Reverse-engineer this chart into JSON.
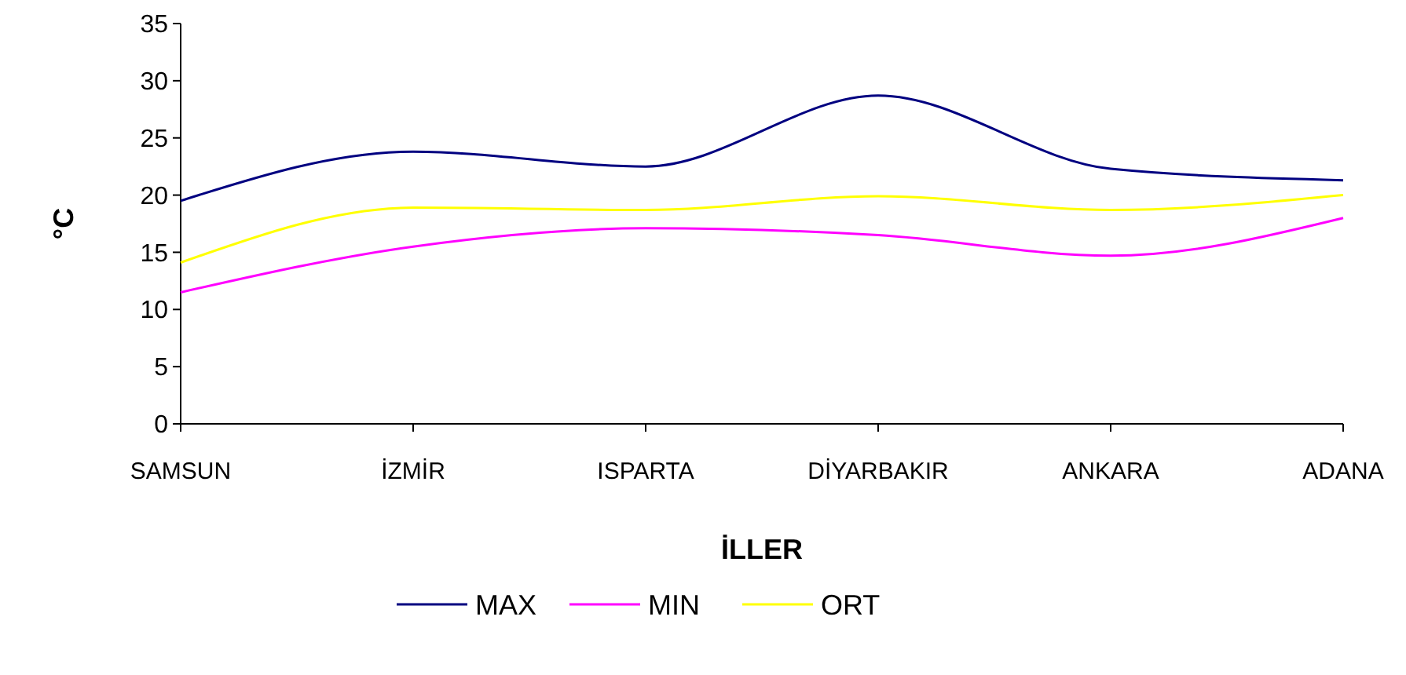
{
  "chart_data": {
    "type": "line",
    "xlabel": "İLLER",
    "ylabel": "°C",
    "categories": [
      "SAMSUN",
      "İZMİR",
      "ISPARTA",
      "DİYARBAKIR",
      "ANKARA",
      "ADANA"
    ],
    "series": [
      {
        "name": "MAX",
        "color": "#000080",
        "values": [
          19.5,
          23.8,
          22.5,
          28.7,
          22.3,
          21.3
        ]
      },
      {
        "name": "MIN",
        "color": "#ff00ff",
        "values": [
          11.5,
          15.5,
          17.1,
          16.5,
          14.7,
          18
        ]
      },
      {
        "name": "ORT",
        "color": "#ffff00",
        "values": [
          14.1,
          18.9,
          18.7,
          19.9,
          18.7,
          20
        ]
      }
    ],
    "ylim": [
      0,
      35
    ],
    "yticks": [
      0,
      5,
      10,
      15,
      20,
      25,
      30,
      35
    ],
    "grid": false,
    "legend": "bottom",
    "marker": "none",
    "line_style": "solid"
  }
}
